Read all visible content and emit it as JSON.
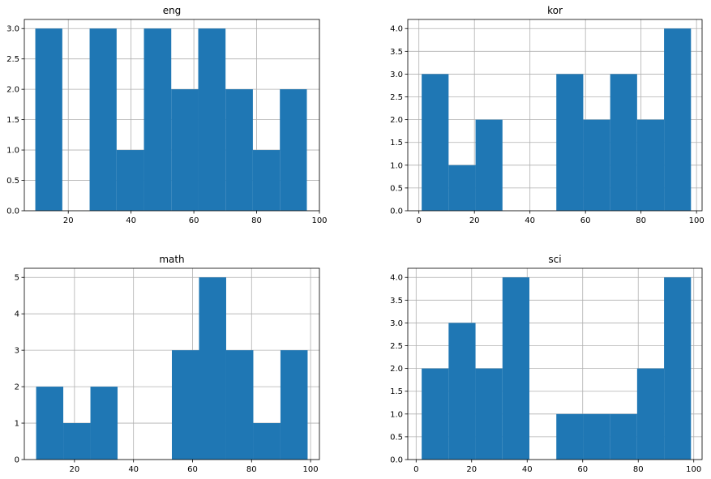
{
  "chart_data": [
    {
      "type": "bar",
      "title": "eng",
      "bins": [
        [
          9.5,
          18.1
        ],
        [
          18.1,
          26.8
        ],
        [
          26.8,
          35.4
        ],
        [
          35.4,
          44.1
        ],
        [
          44.1,
          52.8
        ],
        [
          52.8,
          61.4
        ],
        [
          61.4,
          70.1
        ],
        [
          70.1,
          78.8
        ],
        [
          78.8,
          87.4
        ],
        [
          87.4,
          96.0
        ]
      ],
      "values": [
        3,
        0,
        3,
        1,
        3,
        2,
        3,
        2,
        1,
        2
      ],
      "xlim": [
        6,
        100
      ],
      "ylim": [
        0,
        3.15
      ],
      "xticks": [
        20,
        40,
        60,
        80,
        100
      ],
      "yticks": [
        0.0,
        0.5,
        1.0,
        1.5,
        2.0,
        2.5,
        3.0
      ],
      "ytick_decimals": 1,
      "grid": true,
      "color": "#1f77b4"
    },
    {
      "type": "bar",
      "title": "kor",
      "bins": [
        [
          1.0,
          10.7
        ],
        [
          10.7,
          20.4
        ],
        [
          20.4,
          30.1
        ],
        [
          30.1,
          39.8
        ],
        [
          39.8,
          49.5
        ],
        [
          49.5,
          59.2
        ],
        [
          59.2,
          68.9
        ],
        [
          68.9,
          78.6
        ],
        [
          78.6,
          88.3
        ],
        [
          88.3,
          98.0
        ]
      ],
      "values": [
        3,
        1,
        2,
        0,
        0,
        3,
        2,
        3,
        2,
        4
      ],
      "xlim": [
        -4,
        102
      ],
      "ylim": [
        0,
        4.2
      ],
      "xticks": [
        0,
        20,
        40,
        60,
        80,
        100
      ],
      "yticks": [
        0.0,
        0.5,
        1.0,
        1.5,
        2.0,
        2.5,
        3.0,
        3.5,
        4.0
      ],
      "ytick_decimals": 1,
      "grid": true,
      "color": "#1f77b4"
    },
    {
      "type": "bar",
      "title": "math",
      "bins": [
        [
          7.0,
          16.2
        ],
        [
          16.2,
          25.4
        ],
        [
          25.4,
          34.6
        ],
        [
          34.6,
          43.8
        ],
        [
          43.8,
          53.0
        ],
        [
          53.0,
          62.2
        ],
        [
          62.2,
          71.4
        ],
        [
          71.4,
          80.6
        ],
        [
          80.6,
          89.8
        ],
        [
          89.8,
          99.0
        ]
      ],
      "values": [
        2,
        1,
        2,
        0,
        0,
        3,
        5,
        3,
        1,
        3
      ],
      "xlim": [
        3,
        103
      ],
      "ylim": [
        0,
        5.25
      ],
      "xticks": [
        20,
        40,
        60,
        80,
        100
      ],
      "yticks": [
        0,
        1,
        2,
        3,
        4,
        5
      ],
      "ytick_decimals": 0,
      "grid": true,
      "color": "#1f77b4"
    },
    {
      "type": "bar",
      "title": "sci",
      "bins": [
        [
          2.0,
          11.7
        ],
        [
          11.7,
          21.4
        ],
        [
          21.4,
          31.1
        ],
        [
          31.1,
          40.8
        ],
        [
          40.8,
          50.5
        ],
        [
          50.5,
          60.2
        ],
        [
          60.2,
          69.9
        ],
        [
          69.9,
          79.6
        ],
        [
          79.6,
          89.3
        ],
        [
          89.3,
          99.0
        ]
      ],
      "values": [
        2,
        3,
        2,
        4,
        0,
        1,
        1,
        1,
        2,
        4
      ],
      "xlim": [
        -3,
        103
      ],
      "ylim": [
        0,
        4.2
      ],
      "xticks": [
        0,
        20,
        40,
        60,
        80,
        100
      ],
      "yticks": [
        0.0,
        0.5,
        1.0,
        1.5,
        2.0,
        2.5,
        3.0,
        3.5,
        4.0
      ],
      "ytick_decimals": 1,
      "grid": true,
      "color": "#1f77b4"
    }
  ]
}
